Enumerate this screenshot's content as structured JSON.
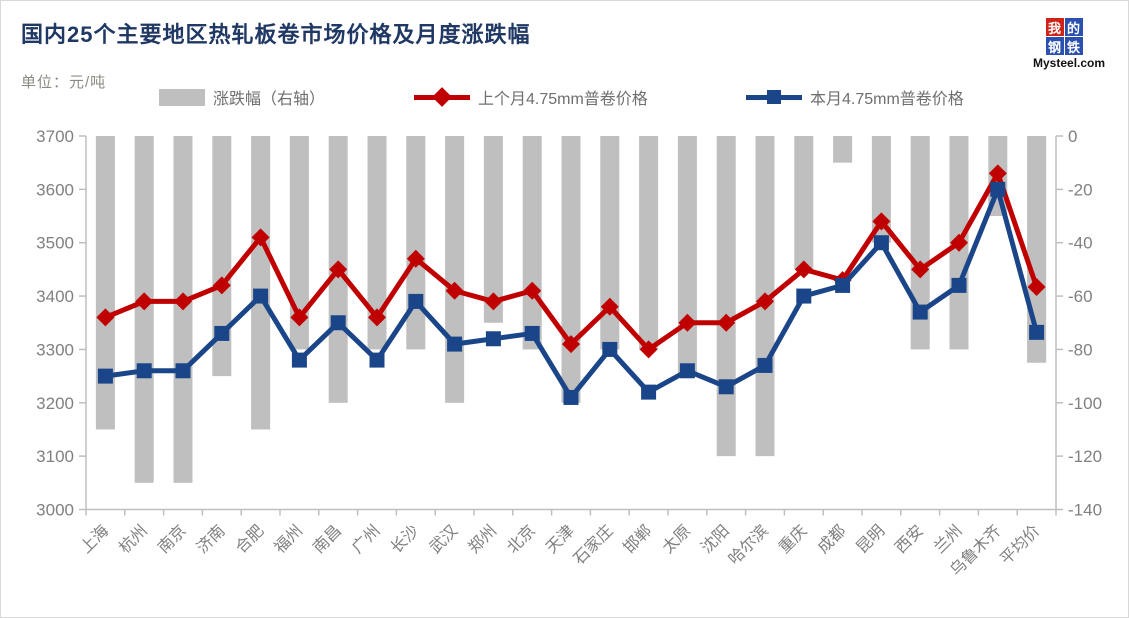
{
  "title": "国内25个主要地区热轧板卷市场价格及月度涨跌幅",
  "unit_label": "单位：元/吨",
  "logo": {
    "cells": [
      {
        "char": "我",
        "bg": "#cf2317"
      },
      {
        "char": "的",
        "bg": "#2b50ae"
      },
      {
        "char": "钢",
        "bg": "#2b50ae"
      },
      {
        "char": "铁",
        "bg": "#2b50ae"
      }
    ],
    "domain": "Mysteel.com"
  },
  "legend": {
    "bar_label": "涨跌幅（右轴）",
    "prev_label": "上个月4.75mm普卷价格",
    "curr_label": "本月4.75mm普卷价格"
  },
  "colors": {
    "title": "#203864",
    "bar": "#bfbfbf",
    "prev_line": "#c00000",
    "curr_line": "#1a4689",
    "axis": "#bfbfbf",
    "tick_text": "#808080"
  },
  "chart_data": {
    "type": "bar+line combo",
    "categories": [
      "上海",
      "杭州",
      "南京",
      "济南",
      "合肥",
      "福州",
      "南昌",
      "广州",
      "长沙",
      "武汉",
      "郑州",
      "北京",
      "天津",
      "石家庄",
      "邯郸",
      "太原",
      "沈阳",
      "哈尔滨",
      "重庆",
      "成都",
      "昆明",
      "西安",
      "兰州",
      "乌鲁木齐",
      "平均价"
    ],
    "series": [
      {
        "name": "涨跌幅（右轴）",
        "type": "bar",
        "axis": "right",
        "values": [
          -110,
          -130,
          -130,
          -90,
          -110,
          -80,
          -100,
          -80,
          -80,
          -100,
          -70,
          -80,
          -100,
          -80,
          -80,
          -90,
          -120,
          -120,
          -50,
          -10,
          -40,
          -80,
          -80,
          -30,
          -85
        ]
      },
      {
        "name": "上个月4.75mm普卷价格",
        "type": "line",
        "marker": "diamond",
        "axis": "left",
        "values": [
          3360,
          3390,
          3390,
          3420,
          3510,
          3360,
          3450,
          3360,
          3470,
          3410,
          3390,
          3410,
          3310,
          3380,
          3300,
          3350,
          3350,
          3390,
          3450,
          3430,
          3540,
          3450,
          3500,
          3630,
          3417
        ]
      },
      {
        "name": "本月4.75mm普卷价格",
        "type": "line",
        "marker": "square",
        "axis": "left",
        "values": [
          3250,
          3260,
          3260,
          3330,
          3400,
          3280,
          3350,
          3280,
          3390,
          3310,
          3320,
          3330,
          3210,
          3300,
          3220,
          3260,
          3230,
          3270,
          3400,
          3420,
          3500,
          3370,
          3420,
          3600,
          3332
        ]
      }
    ],
    "left_axis": {
      "min": 3000,
      "max": 3700,
      "step": 100,
      "ticks": [
        3700,
        3600,
        3500,
        3400,
        3300,
        3200,
        3100,
        3000
      ]
    },
    "right_axis": {
      "min": -140,
      "max": 0,
      "step": 20,
      "ticks": [
        0,
        -20,
        -40,
        -60,
        -80,
        -100,
        -120,
        -140
      ]
    },
    "grid": false,
    "legend_position": "top",
    "x_label_rotation": -45
  }
}
